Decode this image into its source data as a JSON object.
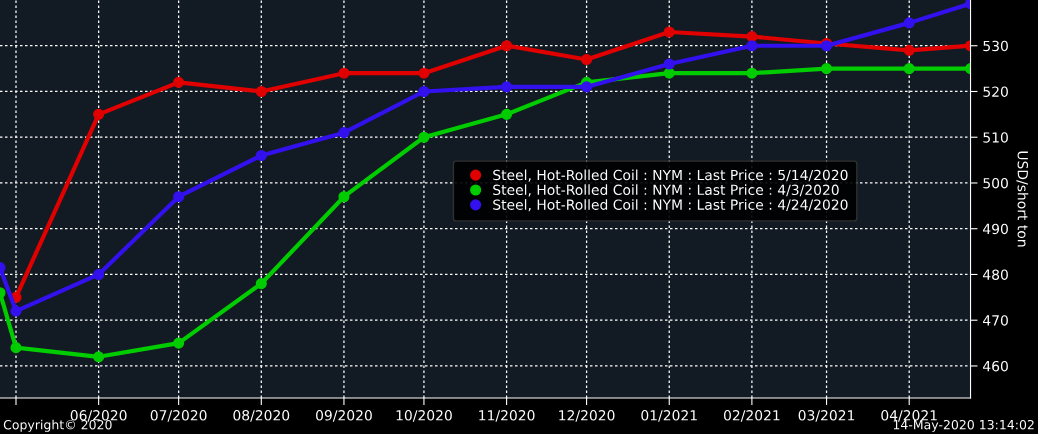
{
  "chart_data": {
    "type": "line",
    "ylabel": "USD/short ton",
    "xlim": [
      "2020-04-25",
      "2021-04-24"
    ],
    "xticks": [
      {
        "value": "2020-05-01",
        "label": null
      },
      {
        "value": "2020-06-01",
        "label": "06/2020"
      },
      {
        "value": "2020-07-01",
        "label": "07/2020"
      },
      {
        "value": "2020-08-01",
        "label": "08/2020"
      },
      {
        "value": "2020-09-01",
        "label": "09/2020"
      },
      {
        "value": "2020-10-01",
        "label": "10/2020"
      },
      {
        "value": "2020-11-01",
        "label": "11/2020"
      },
      {
        "value": "2020-12-01",
        "label": "12/2020"
      },
      {
        "value": "2021-01-01",
        "label": "01/2021"
      },
      {
        "value": "2021-02-01",
        "label": "02/2021"
      },
      {
        "value": "2021-03-01",
        "label": "03/2021"
      },
      {
        "value": "2021-04-01",
        "label": "04/2021"
      }
    ],
    "ylim": [
      453,
      540
    ],
    "yticks": [
      460,
      470,
      480,
      490,
      500,
      510,
      520,
      530
    ],
    "grid": true,
    "legend": "right",
    "marker": "circle",
    "line_style": "solid",
    "series": [
      {
        "name": "Steel, Hot-Rolled Coil : NYM : Last Price : 5/14/2020",
        "color": "#e00000",
        "x": [
          "2020-05-01",
          "2020-06-01",
          "2020-07-01",
          "2020-08-01",
          "2020-09-01",
          "2020-10-01",
          "2020-11-01",
          "2020-12-01",
          "2021-01-01",
          "2021-02-01",
          "2021-03-01",
          "2021-04-01",
          "2021-04-24"
        ],
        "values": [
          475,
          515,
          522,
          520,
          524,
          524,
          530,
          527,
          533,
          532,
          530.5,
          529,
          530
        ]
      },
      {
        "name": "Steel, Hot-Rolled Coil : NYM : Last Price : 4/3/2020",
        "color": "#00cc00",
        "x": [
          "2020-04-25",
          "2020-05-01",
          "2020-06-01",
          "2020-07-01",
          "2020-08-01",
          "2020-09-01",
          "2020-10-01",
          "2020-11-01",
          "2020-12-01",
          "2021-01-01",
          "2021-02-01",
          "2021-03-01",
          "2021-04-01",
          "2021-04-24"
        ],
        "values": [
          476,
          464,
          462,
          465,
          478,
          497,
          510,
          515,
          522,
          524,
          524,
          525,
          525,
          525
        ]
      },
      {
        "name": "Steel, Hot-Rolled Coil : NYM : Last Price : 4/24/2020",
        "color": "#3311ee",
        "x": [
          "2020-04-25",
          "2020-05-01",
          "2020-06-01",
          "2020-07-01",
          "2020-08-01",
          "2020-09-01",
          "2020-10-01",
          "2020-11-01",
          "2020-12-01",
          "2021-01-01",
          "2021-02-01",
          "2021-03-01",
          "2021-04-01",
          "2021-04-24"
        ],
        "values": [
          481.5,
          472,
          480,
          497,
          506,
          511,
          520,
          521,
          521,
          526,
          530,
          530,
          535,
          539.2
        ]
      }
    ],
    "annotations": [
      "Copyright© 2020",
      "14-May-2020 13:14:02"
    ]
  }
}
